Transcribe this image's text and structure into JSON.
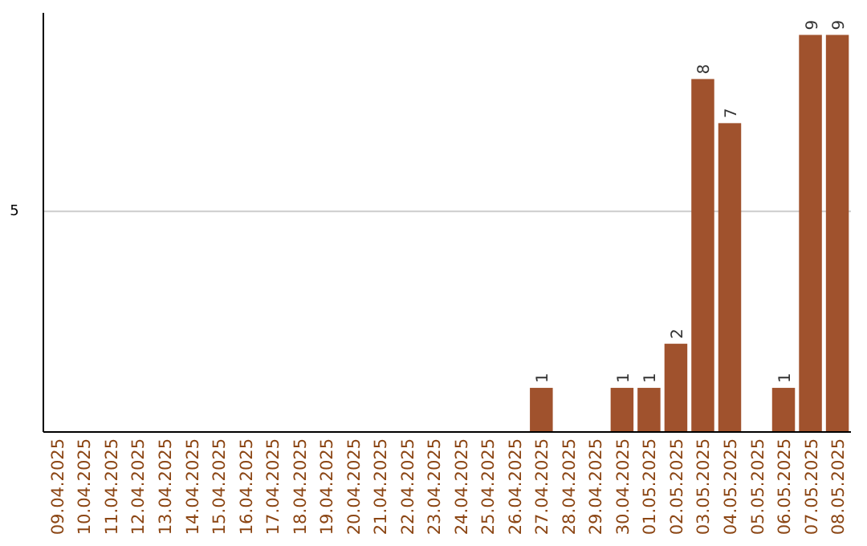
{
  "chart_data": {
    "type": "bar",
    "categories": [
      "09.04.2025",
      "10.04.2025",
      "11.04.2025",
      "12.04.2025",
      "13.04.2025",
      "14.04.2025",
      "15.04.2025",
      "16.04.2025",
      "17.04.2025",
      "18.04.2025",
      "19.04.2025",
      "20.04.2025",
      "21.04.2025",
      "22.04.2025",
      "23.04.2025",
      "24.04.2025",
      "25.04.2025",
      "26.04.2025",
      "27.04.2025",
      "28.04.2025",
      "29.04.2025",
      "30.04.2025",
      "01.05.2025",
      "02.05.2025",
      "03.05.2025",
      "04.05.2025",
      "05.05.2025",
      "06.05.2025",
      "07.05.2025",
      "08.05.2025"
    ],
    "values": [
      null,
      null,
      null,
      null,
      null,
      null,
      null,
      null,
      null,
      null,
      null,
      null,
      null,
      null,
      null,
      null,
      null,
      null,
      1,
      null,
      null,
      1,
      1,
      2,
      8,
      7,
      null,
      1,
      9,
      9
    ],
    "data_labels": true,
    "color": "#a0522d",
    "ylim": [
      0,
      9.5
    ],
    "yticks": [
      5
    ],
    "grid": "y"
  }
}
